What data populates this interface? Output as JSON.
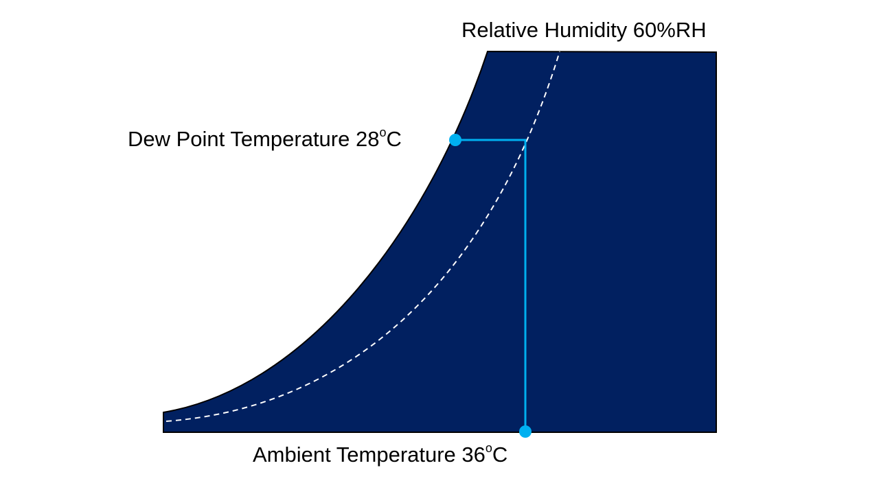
{
  "labels": {
    "relative_humidity": "Relative Humidity 60%RH",
    "dew_point_prefix": "Dew Point Temperature 28",
    "dew_point_degree": "o",
    "dew_point_unit": "C",
    "ambient_prefix": "Ambient Temperature 36",
    "ambient_degree": "o",
    "ambient_unit": "C"
  },
  "colors": {
    "region_fill": "#012060",
    "marker": "#00B0F0",
    "dashed_curve": "#FFFFFF"
  }
}
